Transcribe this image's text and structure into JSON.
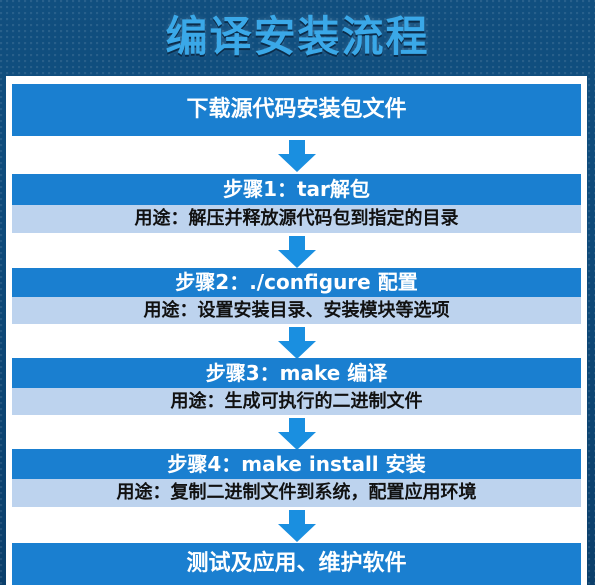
{
  "title": "编译安装流程",
  "colors": {
    "bar": "#1a7fd0",
    "sub": "#bdd3ee",
    "arrow": "#1a8fe0",
    "title": "#3aa8e8"
  },
  "flow": {
    "top": "下载源代码安装包文件",
    "steps": [
      {
        "label": "步骤1：tar解包",
        "use": "用途：解压并释放源代码包到指定的目录"
      },
      {
        "label": "步骤2：./configure 配置",
        "use": "用途：设置安装目录、安装模块等选项"
      },
      {
        "label": "步骤3：make 编译",
        "use": "用途：生成可执行的二进制文件"
      },
      {
        "label": "步骤4：make install 安装",
        "use": "用途：复制二进制文件到系统，配置应用环境"
      }
    ],
    "bottom": "测试及应用、维护软件"
  }
}
